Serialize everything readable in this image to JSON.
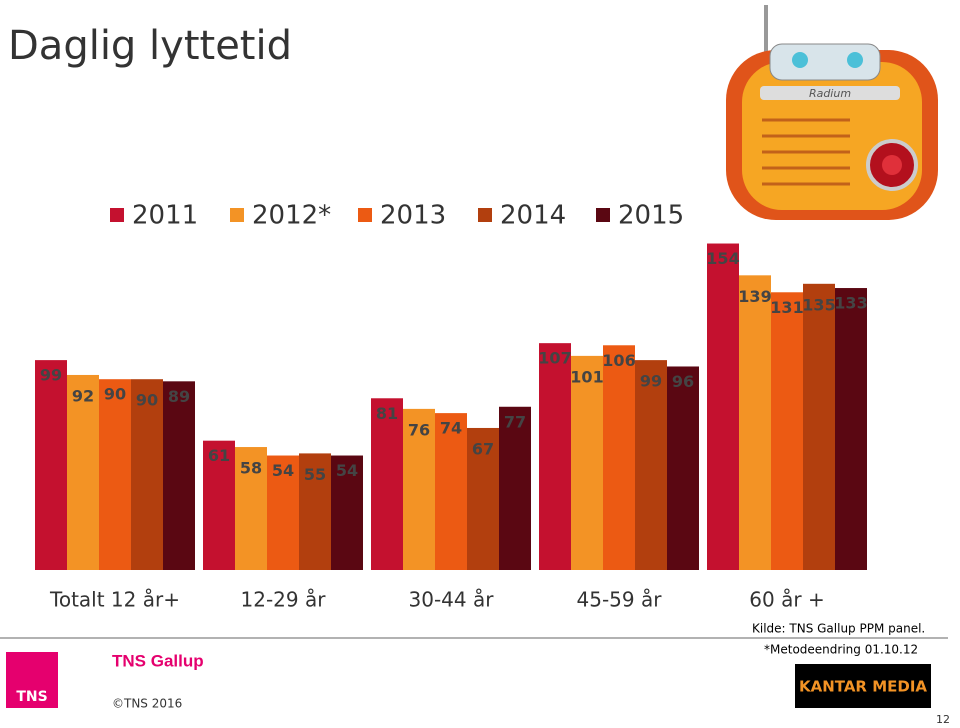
{
  "chart_data": {
    "type": "bar",
    "title": "Daglig lyttetid",
    "categories": [
      "Totalt 12 år+",
      "12-29 år",
      "30-44 år",
      "45-59 år",
      "60 år +"
    ],
    "series": [
      {
        "name": "2011",
        "color": "#c4112f",
        "values": [
          99,
          61,
          81,
          107,
          154
        ]
      },
      {
        "name": "2012*",
        "color": "#f39325",
        "values": [
          92,
          58,
          76,
          101,
          139
        ]
      },
      {
        "name": "2013",
        "color": "#ec5a13",
        "values": [
          90,
          54,
          74,
          106,
          131
        ]
      },
      {
        "name": "2014",
        "color": "#b23f0e",
        "values": [
          90,
          55,
          67,
          99,
          135
        ]
      },
      {
        "name": "2015",
        "color": "#5a0712",
        "values": [
          89,
          54,
          77,
          96,
          133
        ]
      }
    ]
  },
  "slide": {
    "source": "Kilde: TNS Gallup PPM panel.",
    "note": "*Metodeendring 01.10.12",
    "brand": "TNS Gallup",
    "logo": "TNS",
    "copyright": "©TNS 2016",
    "partner": "KANTAR MEDIA",
    "radio_label": "Radium",
    "page_number": "12"
  }
}
